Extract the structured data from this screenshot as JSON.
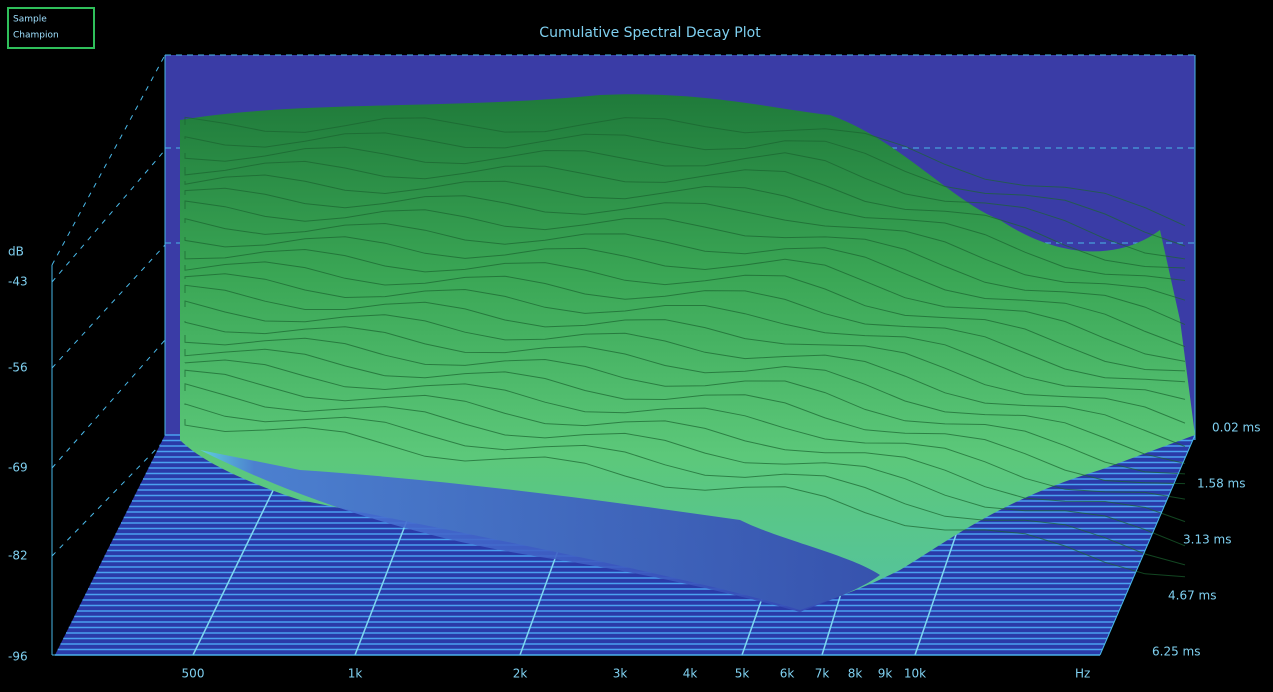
{
  "badge": {
    "line1": "Sample",
    "line2": "Champion"
  },
  "title": "Cumulative Spectral Decay Plot",
  "y_axis": {
    "unit": "dB",
    "ticks": [
      "-43",
      "-56",
      "-69",
      "-82",
      "-96"
    ]
  },
  "x_axis": {
    "ticks": [
      "500",
      "1k",
      "2k",
      "3k",
      "4k",
      "5k",
      "6k",
      "7k",
      "8k",
      "9k",
      "10k"
    ],
    "unit": "Hz"
  },
  "z_axis": {
    "ticks": [
      "0.02 ms",
      "1.58 ms",
      "3.13 ms",
      "4.67 ms",
      "6.25 ms"
    ]
  }
}
